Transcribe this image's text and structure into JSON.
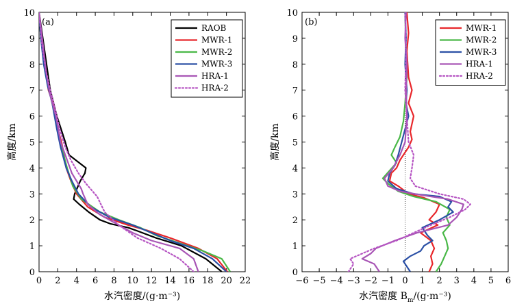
{
  "chart_data": [
    {
      "type": "line",
      "panel_label": "(a)",
      "xlabel": "水汽密度/(g·m⁻³)",
      "ylabel": "高度/km",
      "xlim": [
        0,
        22
      ],
      "ylim": [
        0,
        10
      ],
      "xticks": [
        "0",
        "2",
        "4",
        "6",
        "8",
        "10",
        "12",
        "14",
        "16",
        "18",
        "20",
        "22"
      ],
      "yticks": [
        "0",
        "1",
        "2",
        "3",
        "4",
        "5",
        "6",
        "7",
        "8",
        "9",
        "10"
      ],
      "legend_position": "top-right",
      "series": [
        {
          "name": "RAOB",
          "color": "#000000",
          "dash": "",
          "x": [
            19.5,
            17.8,
            15.2,
            12.5,
            10.3,
            9.5,
            7.6,
            6.5,
            5.3,
            4.3,
            3.7,
            3.8,
            4.4,
            4.9,
            5.0,
            3.2,
            2.8,
            1.9,
            1.2,
            0.8,
            0.4,
            0.0
          ],
          "y": [
            0.0,
            0.5,
            1.0,
            1.3,
            1.6,
            1.7,
            1.85,
            2.0,
            2.3,
            2.6,
            2.8,
            3.0,
            3.5,
            3.8,
            4.0,
            4.5,
            5.0,
            6.0,
            7.0,
            8.0,
            9.0,
            10.0
          ]
        },
        {
          "name": "MWR-1",
          "color": "#e8262a",
          "dash": "",
          "x": [
            20.1,
            19.0,
            17.0,
            14.0,
            11.5,
            9.5,
            7.0,
            5.2,
            4.0,
            3.4,
            2.9,
            2.4,
            2.0,
            1.5,
            1.0,
            0.6,
            0.3,
            0.0
          ],
          "y": [
            0.0,
            0.5,
            0.9,
            1.3,
            1.6,
            1.8,
            2.1,
            2.5,
            3.0,
            3.5,
            4.0,
            5.0,
            5.5,
            6.5,
            7.0,
            8.0,
            9.0,
            10.0
          ]
        },
        {
          "name": "MWR-2",
          "color": "#49b847",
          "dash": "",
          "x": [
            20.4,
            19.5,
            17.5,
            15.0,
            12.5,
            10.8,
            8.5,
            6.5,
            4.5,
            3.6,
            3.0,
            2.4,
            2.0,
            1.4,
            0.9,
            0.5,
            0.2,
            0.0
          ],
          "y": [
            0.0,
            0.5,
            0.8,
            1.1,
            1.4,
            1.7,
            2.0,
            2.3,
            2.8,
            3.3,
            4.0,
            4.8,
            5.5,
            6.5,
            7.3,
            8.2,
            9.0,
            10.0
          ]
        },
        {
          "name": "MWR-3",
          "color": "#2a4fa5",
          "dash": "",
          "x": [
            20.0,
            18.5,
            16.5,
            14.0,
            12.0,
            10.0,
            7.5,
            5.5,
            4.2,
            3.5,
            2.9,
            2.3,
            1.9,
            1.4,
            0.9,
            0.5,
            0.2,
            0.0
          ],
          "y": [
            0.0,
            0.5,
            0.9,
            1.2,
            1.5,
            1.8,
            2.1,
            2.5,
            3.0,
            3.5,
            4.0,
            4.8,
            5.5,
            6.5,
            7.2,
            8.0,
            9.0,
            10.0
          ]
        },
        {
          "name": "HRA-1",
          "color": "#a855b5",
          "dash": "",
          "x": [
            17.0,
            16.5,
            15.0,
            12.0,
            10.0,
            8.5,
            6.5,
            5.2,
            4.7,
            4.5,
            3.5,
            2.8,
            2.3,
            1.8,
            1.2,
            0.8,
            0.4,
            0.0
          ],
          "y": [
            0.0,
            0.5,
            0.9,
            1.2,
            1.5,
            1.8,
            2.2,
            2.6,
            3.0,
            3.2,
            3.8,
            4.5,
            5.0,
            6.0,
            6.8,
            7.6,
            8.8,
            10.0
          ]
        },
        {
          "name": "HRA-2",
          "color": "#b654c3",
          "dash": "2,3",
          "x": [
            16.5,
            15.0,
            13.0,
            10.5,
            8.5,
            7.0,
            6.2,
            5.0,
            4.2,
            3.4,
            2.8,
            2.2,
            1.7,
            1.2,
            0.7,
            0.3,
            0.0
          ],
          "y": [
            0.0,
            0.5,
            0.9,
            1.3,
            1.8,
            2.3,
            2.9,
            3.4,
            3.8,
            4.3,
            4.8,
            5.5,
            6.3,
            7.0,
            7.8,
            8.8,
            10.0
          ]
        }
      ]
    },
    {
      "type": "line",
      "panel_label": "(b)",
      "xlabel": "水汽密度 B",
      "xlabel_sub": "m",
      "xlabel_tail": "/(g·m⁻³)",
      "ylabel": "高度/km",
      "xlim": [
        -6,
        6
      ],
      "ylim": [
        0,
        10
      ],
      "xticks": [
        "−6",
        "−5",
        "−4",
        "−3",
        "−2",
        "−1",
        "0",
        "1",
        "2",
        "3",
        "4",
        "5",
        "6"
      ],
      "yticks": [
        "0",
        "1",
        "2",
        "3",
        "4",
        "5",
        "6",
        "7",
        "8",
        "9",
        "10"
      ],
      "reference_line_x": 0,
      "legend_position": "top-right",
      "series": [
        {
          "name": "MWR-1",
          "color": "#e8262a",
          "dash": "",
          "x": [
            1.4,
            1.6,
            1.5,
            1.7,
            1.5,
            0.9,
            1.9,
            1.4,
            1.8,
            2.0,
            1.1,
            0.2,
            -0.4,
            -0.9,
            -0.8,
            -0.5,
            -0.3,
            -0.1,
            0.2,
            0.4,
            0.3,
            0.5,
            0.2,
            0.4,
            0.2,
            0.1,
            0.2,
            0.1
          ],
          "y": [
            0.0,
            0.3,
            0.6,
            0.9,
            1.2,
            1.5,
            1.8,
            2.0,
            2.3,
            2.6,
            2.85,
            3.0,
            3.3,
            3.5,
            3.8,
            4.0,
            4.3,
            4.5,
            4.8,
            5.1,
            5.4,
            6.0,
            6.5,
            7.0,
            7.5,
            8.5,
            9.2,
            10.0
          ]
        },
        {
          "name": "MWR-2",
          "color": "#49b847",
          "dash": "",
          "x": [
            1.8,
            2.1,
            2.3,
            2.5,
            2.4,
            2.2,
            2.6,
            2.4,
            2.6,
            1.8,
            0.5,
            -0.4,
            -1.0,
            -1.3,
            -0.9,
            -0.5,
            -0.8,
            -0.6,
            -0.3,
            -0.1,
            0.0,
            0.1,
            0.05,
            0.0
          ],
          "y": [
            0.0,
            0.3,
            0.6,
            0.9,
            1.2,
            1.5,
            1.8,
            2.1,
            2.4,
            2.7,
            2.9,
            3.1,
            3.4,
            3.6,
            3.9,
            4.2,
            4.5,
            4.8,
            5.2,
            5.8,
            6.5,
            7.5,
            8.5,
            10.0
          ]
        },
        {
          "name": "MWR-3",
          "color": "#2a4fa5",
          "dash": "",
          "x": [
            0.3,
            0.1,
            -0.1,
            0.3,
            0.9,
            1.1,
            1.6,
            1.3,
            1.0,
            2.0,
            2.8,
            2.5,
            2.7,
            2.0,
            0.5,
            -0.5,
            -1.0,
            -0.9,
            -0.6,
            -0.4,
            -0.2,
            0.0,
            0.2,
            0.05,
            0.1,
            0.0,
            0.05,
            0.0
          ],
          "y": [
            0.0,
            0.2,
            0.4,
            0.6,
            0.8,
            1.0,
            1.2,
            1.4,
            1.7,
            2.0,
            2.3,
            2.5,
            2.7,
            2.9,
            3.0,
            3.2,
            3.5,
            3.8,
            4.1,
            4.5,
            5.0,
            5.5,
            6.0,
            6.5,
            7.0,
            8.0,
            9.0,
            10.0
          ]
        },
        {
          "name": "HRA-1",
          "color": "#a855b5",
          "dash": "",
          "x": [
            -1.5,
            -1.8,
            -2.5,
            -2.0,
            -1.7,
            -0.6,
            0.7,
            2.5,
            3.0,
            3.3,
            3.4,
            2.5,
            1.0,
            -0.3,
            -1.0,
            -1.2,
            -0.7,
            -0.3,
            0.0,
            0.1,
            0.05,
            0.1,
            0.0,
            0.05
          ],
          "y": [
            0.0,
            0.3,
            0.5,
            0.7,
            0.9,
            1.2,
            1.5,
            1.8,
            2.1,
            2.4,
            2.6,
            2.8,
            2.95,
            3.1,
            3.3,
            3.6,
            4.0,
            4.5,
            5.0,
            6.0,
            7.0,
            8.0,
            9.0,
            10.0
          ]
        },
        {
          "name": "HRA-2",
          "color": "#b654c3",
          "dash": "2,3",
          "x": [
            -3.3,
            -3.0,
            -3.2,
            -2.5,
            -1.8,
            -0.5,
            0.5,
            1.5,
            2.6,
            3.5,
            3.8,
            3.4,
            2.0,
            0.6,
            0.3,
            0.4,
            0.5,
            0.2,
            0.1,
            0.0,
            0.05,
            0.0
          ],
          "y": [
            0.0,
            0.3,
            0.5,
            0.7,
            0.9,
            1.2,
            1.5,
            1.8,
            2.1,
            2.4,
            2.6,
            2.8,
            3.0,
            3.3,
            3.6,
            4.0,
            4.5,
            5.0,
            6.0,
            7.0,
            8.5,
            10.0
          ]
        }
      ]
    }
  ]
}
